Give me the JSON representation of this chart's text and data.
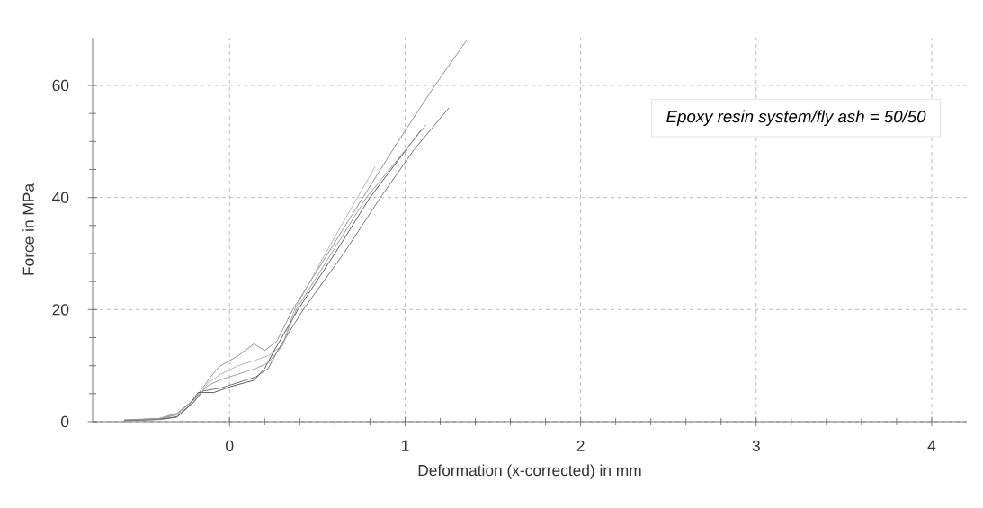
{
  "chart_data": {
    "type": "line",
    "xlabel": "Deformation (x-corrected) in mm",
    "ylabel": "Force in MPa",
    "xlim": [
      -0.78,
      4.2
    ],
    "ylim": [
      0,
      68.5
    ],
    "xticks": [
      0,
      1,
      2,
      3,
      4
    ],
    "yticks": [
      0,
      20,
      40,
      60
    ],
    "grid": true,
    "marker": "none",
    "line_style": "solid",
    "annotations": [
      "Epoxy resin system/fly ash = 50/50"
    ],
    "series": [
      {
        "color": "#8a8a8a",
        "x": [
          -0.6,
          -0.4,
          -0.3,
          -0.2,
          -0.11,
          -0.06,
          0.05,
          0.14,
          0.2,
          0.27,
          0.36,
          0.55,
          0.76,
          0.96,
          1.17,
          1.35
        ],
        "values": [
          0.3,
          0.6,
          1.5,
          4,
          7.9,
          9.8,
          11.8,
          13.9,
          12.7,
          14.4,
          20,
          29.5,
          40,
          50,
          60,
          68
        ]
      },
      {
        "color": "#b0b0b0",
        "x": [
          -0.6,
          -0.4,
          -0.3,
          -0.2,
          -0.12,
          -0.05,
          0.05,
          0.15,
          0.22,
          0.3,
          0.37,
          0.6,
          0.83
        ],
        "values": [
          0.3,
          0.5,
          1.2,
          3.5,
          7,
          8.5,
          10,
          11,
          11.8,
          13.5,
          20,
          33,
          45.5
        ]
      },
      {
        "color": "#505050",
        "x": [
          -0.6,
          -0.4,
          -0.3,
          -0.24,
          -0.18,
          -0.09,
          0.01,
          0.14,
          0.2,
          0.26,
          0.39,
          0.6,
          0.8,
          1.09
        ],
        "values": [
          0.2,
          0.4,
          0.8,
          2.5,
          5.2,
          5.2,
          6.3,
          7.4,
          9.5,
          13,
          20,
          30,
          40,
          52
        ]
      },
      {
        "color": "#6a6a6a",
        "x": [
          -0.6,
          -0.4,
          -0.3,
          -0.22,
          -0.15,
          -0.05,
          0.05,
          0.15,
          0.22,
          0.28,
          0.42,
          0.65,
          0.86,
          1.05,
          1.25
        ],
        "values": [
          0.2,
          0.4,
          0.9,
          3,
          5.5,
          6,
          7,
          8,
          9.5,
          13,
          20,
          30,
          40,
          48.5,
          56
        ]
      },
      {
        "color": "#999999",
        "x": [
          -0.6,
          -0.4,
          -0.3,
          -0.2,
          -0.12,
          -0.05,
          0.05,
          0.15,
          0.22,
          0.3,
          0.38,
          0.6,
          0.78,
          1.12
        ],
        "values": [
          0.3,
          0.5,
          1.3,
          4,
          6.5,
          7.5,
          8.5,
          9.5,
          10.5,
          13.5,
          20,
          31,
          40,
          53
        ]
      }
    ]
  }
}
